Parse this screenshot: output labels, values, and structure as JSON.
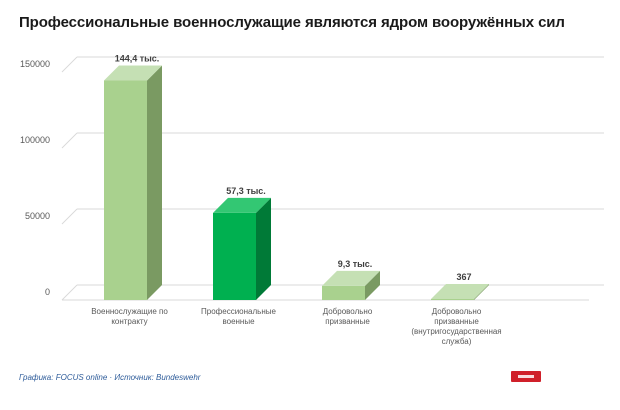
{
  "title": "Профессиональные военнослужащие являются ядром вооружённых сил",
  "footer": "Графика: FOCUS online · Источник: Bundeswehr",
  "chart_data": {
    "type": "bar",
    "categories": [
      [
        "Военнослужащие по",
        "контракту"
      ],
      [
        "Профессиональные",
        "военные"
      ],
      [
        "Добровольно",
        "призванные"
      ],
      [
        "Добровольно",
        "призванные",
        "(внутригосударственная",
        "служба)"
      ]
    ],
    "values": [
      144400,
      57300,
      9300,
      367
    ],
    "data_labels": [
      "144,4 тыс.",
      "57,3 тыс.",
      "9,3 тыс.",
      "367"
    ],
    "yticks": [
      "0",
      "50000",
      "100000",
      "150000"
    ],
    "ylim": [
      0,
      150000
    ],
    "grid": true,
    "colors": {
      "light_front": "#a9d18e",
      "light_side": "#7a9a62",
      "light_top": "#c5e0b4",
      "dark_front": "#00b050",
      "dark_side": "#007a37",
      "dark_top": "#33c773",
      "grid": "#d9d9d9",
      "label": "#595959",
      "data_label": "#404040"
    },
    "bar_color_keys": [
      "light",
      "dark",
      "light",
      "light"
    ]
  }
}
